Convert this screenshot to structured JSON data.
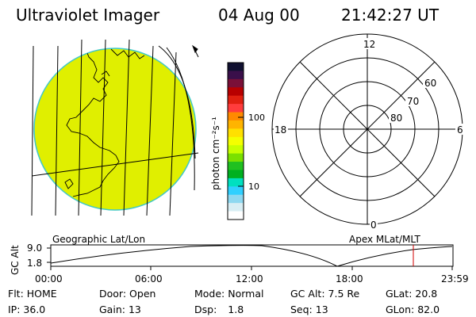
{
  "header": {
    "title": "Ultraviolet Imager",
    "date": "04 Aug 00",
    "time": "21:42:27 UT"
  },
  "colorbar": {
    "unit_label": "photon cm⁻²s⁻¹",
    "ticks": [
      "100",
      "10"
    ],
    "colors": [
      "#101030",
      "#3a0f4a",
      "#7a1038",
      "#b80000",
      "#e02010",
      "#ff3c3c",
      "#ff8a00",
      "#ffb400",
      "#ffe000",
      "#f4ff00",
      "#c8ff00",
      "#7ae000",
      "#20c020",
      "#00b020",
      "#00e0c0",
      "#30d0ff",
      "#8ed8f0",
      "#d8eef4",
      "#ffffff"
    ]
  },
  "geo_panel": {
    "caption": "Geographic Lat/Lon",
    "disk_color": "#e0ef00"
  },
  "polar_panel": {
    "caption": "Apex MLat/MLT",
    "mlt_labels": {
      "top": "12",
      "left": "18",
      "right": "6",
      "bottom": "0"
    },
    "lat_labels": [
      "60",
      "70",
      "80"
    ]
  },
  "altitude_plot": {
    "ylabel": "GC Alt",
    "yticks": [
      "9.0",
      "1.8"
    ],
    "xticks": [
      "00:00",
      "06:00",
      "12:00",
      "18:00",
      "23:59"
    ],
    "current_marker_color": "#d00000"
  },
  "status": {
    "flt_label": "Flt:",
    "flt_value": "HOME",
    "ip_label": "IP:",
    "ip_value": "36.0",
    "door_label": "Door:",
    "door_value": "Open",
    "gain_label": "Gain:",
    "gain_value": "13",
    "mode_label": "Mode:",
    "mode_value": "Normal",
    "dsp_label": "Dsp:",
    "dsp_value": "1.8",
    "gcalt_label": "GC Alt:",
    "gcalt_value": "7.5 Re",
    "seq_label": "Seq:",
    "seq_value": "13",
    "glat_label": "GLat:",
    "glat_value": "20.8",
    "glon_label": "GLon:",
    "glon_value": "82.0"
  }
}
